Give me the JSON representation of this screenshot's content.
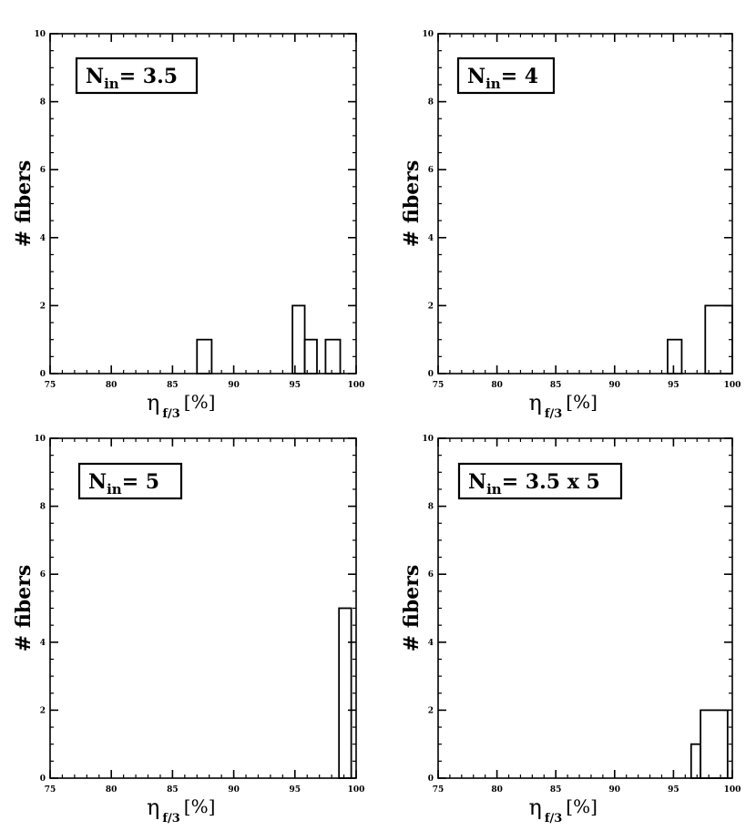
{
  "chart_data": [
    {
      "type": "bar",
      "panel": "top-left",
      "legend_box": {
        "main": "N",
        "sub": "in",
        "value": "= 3.5"
      },
      "xlabel": {
        "symbol": "η",
        "sub": "f/3",
        "unit": "[%]"
      },
      "ylabel": "# fibers",
      "xlim": [
        75,
        100
      ],
      "ylim": [
        0,
        10
      ],
      "xticks": [
        75,
        80,
        85,
        90,
        95,
        100
      ],
      "xtick_labels": [
        "75",
        "80",
        "85",
        "90",
        "95",
        "100"
      ],
      "yticks": [
        0,
        2,
        4,
        6,
        8,
        10
      ],
      "ytick_labels": [
        "0",
        "2",
        "4",
        "6",
        "8",
        "10"
      ],
      "bins": [
        {
          "x0": 87.0,
          "x1": 88.2,
          "count": 1
        },
        {
          "x0": 94.8,
          "x1": 95.8,
          "count": 2
        },
        {
          "x0": 95.8,
          "x1": 96.8,
          "count": 1
        },
        {
          "x0": 97.5,
          "x1": 98.7,
          "count": 1
        }
      ]
    },
    {
      "type": "bar",
      "panel": "top-right",
      "legend_box": {
        "main": "N",
        "sub": "in",
        "value": "= 4"
      },
      "xlabel": {
        "symbol": "η",
        "sub": "f/3",
        "unit": "[%]"
      },
      "ylabel": "# fibers",
      "xlim": [
        75,
        100
      ],
      "ylim": [
        0,
        10
      ],
      "xticks": [
        75,
        80,
        85,
        90,
        95,
        100
      ],
      "xtick_labels": [
        "75",
        "80",
        "85",
        "90",
        "95",
        "100"
      ],
      "yticks": [
        0,
        2,
        4,
        6,
        8,
        10
      ],
      "ytick_labels": [
        "0",
        "2",
        "4",
        "6",
        "8",
        "10"
      ],
      "bins": [
        {
          "x0": 94.5,
          "x1": 95.7,
          "count": 1
        },
        {
          "x0": 97.7,
          "x1": 100,
          "count": 2
        }
      ]
    },
    {
      "type": "bar",
      "panel": "bottom-left",
      "legend_box": {
        "main": "N",
        "sub": "in",
        "value": "= 5"
      },
      "xlabel": {
        "symbol": "η",
        "sub": "f/3",
        "unit": "[%]"
      },
      "ylabel": "# fibers",
      "xlim": [
        75,
        100
      ],
      "ylim": [
        0,
        10
      ],
      "xticks": [
        75,
        80,
        85,
        90,
        95,
        100
      ],
      "xtick_labels": [
        "75",
        "80",
        "85",
        "90",
        "95",
        "100"
      ],
      "yticks": [
        0,
        2,
        4,
        6,
        8,
        10
      ],
      "ytick_labels": [
        "0",
        "2",
        "4",
        "6",
        "8",
        "10"
      ],
      "bins": [
        {
          "x0": 98.6,
          "x1": 99.6,
          "count": 5
        }
      ]
    },
    {
      "type": "bar",
      "panel": "bottom-right",
      "legend_box": {
        "main": "N",
        "sub": "in",
        "value": "= 3.5 x 5"
      },
      "xlabel": {
        "symbol": "η",
        "sub": "f/3",
        "unit": "[%]"
      },
      "ylabel": "# fibers",
      "xlim": [
        75,
        100
      ],
      "ylim": [
        0,
        10
      ],
      "xticks": [
        75,
        80,
        85,
        90,
        95,
        100
      ],
      "xtick_labels": [
        "75",
        "80",
        "85",
        "90",
        "95",
        "100"
      ],
      "yticks": [
        0,
        2,
        4,
        6,
        8,
        10
      ],
      "ytick_labels": [
        "0",
        "2",
        "4",
        "6",
        "8",
        "10"
      ],
      "bins": [
        {
          "x0": 96.5,
          "x1": 97.3,
          "count": 1
        },
        {
          "x0": 97.3,
          "x1": 99.6,
          "count": 2
        }
      ]
    }
  ]
}
